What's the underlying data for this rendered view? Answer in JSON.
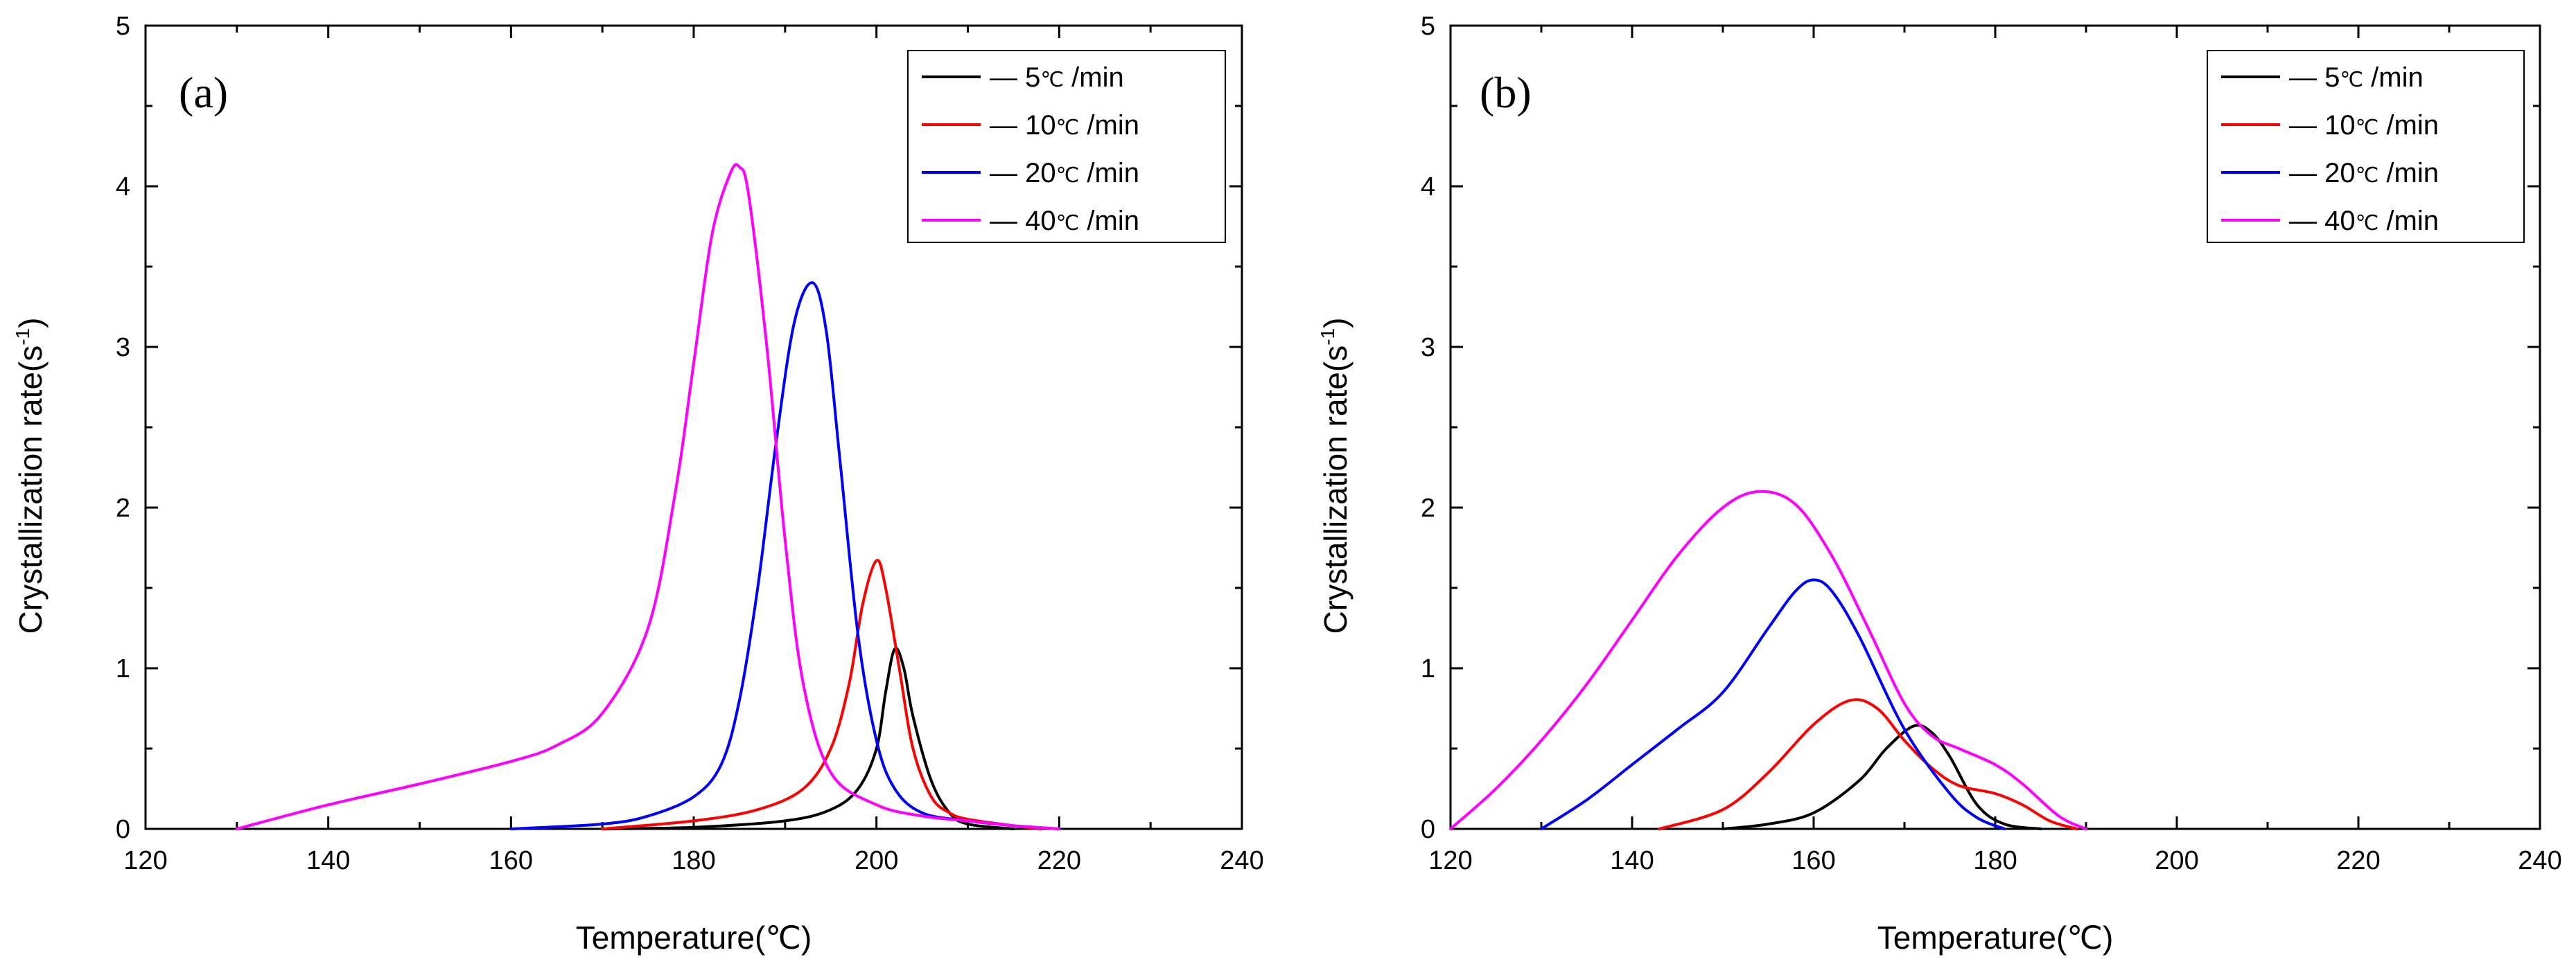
{
  "chart_data": [
    {
      "type": "line",
      "panel_label": "(a)",
      "xlabel": "Temperature(℃)",
      "ylabel": "Crystallization rate(s",
      "ylabel_sup": "-1",
      "ylabel_end": ")",
      "xlim": [
        120,
        240
      ],
      "ylim": [
        0,
        5
      ],
      "xticks": [
        120,
        140,
        160,
        180,
        200,
        220,
        240
      ],
      "yticks": [
        0,
        1,
        2,
        3,
        4,
        5
      ],
      "legend_position": "top-right",
      "series": [
        {
          "name": "5℃ /min",
          "legend_label": "5",
          "color": "#000000",
          "x": [
            170,
            180,
            190,
            195,
            198,
            200,
            201,
            202,
            203,
            204,
            206,
            208,
            210,
            215
          ],
          "y": [
            0,
            0.01,
            0.05,
            0.12,
            0.25,
            0.5,
            0.85,
            1.12,
            1.0,
            0.7,
            0.3,
            0.1,
            0.03,
            0
          ]
        },
        {
          "name": "10℃ /min",
          "legend_label": "10",
          "color": "#ff0000",
          "x": [
            170,
            180,
            187,
            192,
            195,
            197,
            198.5,
            200,
            201,
            202.5,
            204,
            206,
            208,
            210,
            215,
            218
          ],
          "y": [
            0,
            0.05,
            0.12,
            0.25,
            0.5,
            0.9,
            1.4,
            1.67,
            1.5,
            1.0,
            0.5,
            0.2,
            0.1,
            0.06,
            0.02,
            0
          ]
        },
        {
          "name": "20℃ /min",
          "legend_label": "20",
          "color": "#0000ff",
          "x": [
            160,
            170,
            175,
            180,
            183,
            185,
            187,
            189,
            191,
            193,
            194.5,
            196,
            198,
            200,
            202,
            205,
            210,
            215,
            220
          ],
          "y": [
            0,
            0.03,
            0.08,
            0.2,
            0.4,
            0.8,
            1.5,
            2.4,
            3.15,
            3.4,
            3.1,
            2.3,
            1.2,
            0.55,
            0.25,
            0.1,
            0.05,
            0.02,
            0
          ]
        },
        {
          "name": "40℃ /min",
          "legend_label": "40",
          "color": "#ff00ff",
          "x": [
            130,
            140,
            150,
            160,
            165,
            170,
            175,
            178,
            180,
            182,
            184,
            185,
            186,
            188,
            190,
            192,
            195,
            200,
            205,
            210,
            215,
            220
          ],
          "y": [
            0,
            0.15,
            0.28,
            0.42,
            0.52,
            0.72,
            1.25,
            2.1,
            2.9,
            3.7,
            4.08,
            4.12,
            3.95,
            3.0,
            1.8,
            0.9,
            0.35,
            0.15,
            0.08,
            0.05,
            0.02,
            0
          ]
        }
      ]
    },
    {
      "type": "line",
      "panel_label": "(b)",
      "xlabel": "Temperature(℃)",
      "ylabel": "Crystallization rate(s",
      "ylabel_sup": "-1",
      "ylabel_end": ")",
      "xlim": [
        120,
        240
      ],
      "ylim": [
        0,
        5
      ],
      "xticks": [
        120,
        140,
        160,
        180,
        200,
        220,
        240
      ],
      "yticks": [
        0,
        1,
        2,
        3,
        4,
        5
      ],
      "legend_position": "top-right",
      "series": [
        {
          "name": "5℃ /min",
          "legend_label": "5",
          "color": "#000000",
          "x": [
            150,
            155,
            160,
            165,
            168,
            171,
            173,
            175,
            178,
            181,
            185
          ],
          "y": [
            0,
            0.03,
            0.1,
            0.3,
            0.5,
            0.64,
            0.6,
            0.45,
            0.15,
            0.03,
            0
          ]
        },
        {
          "name": "10℃ /min",
          "legend_label": "10",
          "color": "#ff0000",
          "x": [
            143,
            150,
            155,
            160,
            164,
            167,
            170,
            173,
            176,
            180,
            183,
            186,
            189
          ],
          "y": [
            0,
            0.12,
            0.35,
            0.65,
            0.8,
            0.75,
            0.55,
            0.38,
            0.27,
            0.22,
            0.15,
            0.05,
            0
          ]
        },
        {
          "name": "20℃ /min",
          "legend_label": "20",
          "color": "#0000ff",
          "x": [
            130,
            135,
            140,
            145,
            150,
            155,
            158,
            160,
            162,
            165,
            170,
            175,
            178,
            181
          ],
          "y": [
            0,
            0.18,
            0.4,
            0.62,
            0.85,
            1.25,
            1.48,
            1.55,
            1.48,
            1.2,
            0.62,
            0.22,
            0.07,
            0
          ]
        },
        {
          "name": "40℃ /min",
          "legend_label": "40",
          "color": "#ff00ff",
          "x": [
            120,
            125,
            130,
            135,
            140,
            145,
            150,
            154,
            158,
            162,
            166,
            170,
            173,
            176,
            180,
            183,
            187,
            190
          ],
          "y": [
            0,
            0.25,
            0.55,
            0.9,
            1.3,
            1.7,
            2.0,
            2.1,
            2.02,
            1.7,
            1.25,
            0.78,
            0.58,
            0.5,
            0.4,
            0.28,
            0.08,
            0
          ]
        }
      ]
    }
  ],
  "legend_unit": "℃ /min",
  "legend_dash": "—"
}
